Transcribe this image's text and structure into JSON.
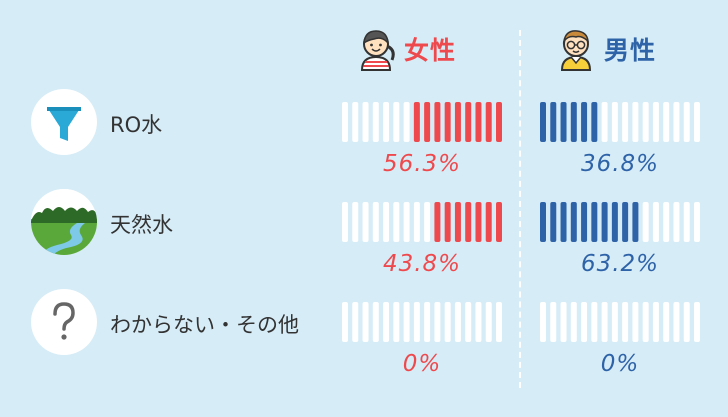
{
  "colors": {
    "female": "#ee4a4e",
    "male": "#2f63a8",
    "empty": "#ffffff",
    "background": "#d6ecf7"
  },
  "headers": {
    "female": {
      "label": "女性",
      "icon": "girl-avatar-icon"
    },
    "male": {
      "label": "男性",
      "icon": "boy-avatar-icon"
    }
  },
  "chart_data": {
    "type": "bar",
    "categories": [
      "RO水",
      "天然水",
      "わからない・その他"
    ],
    "category_icons": [
      "filter-funnel-icon",
      "forest-river-icon",
      "question-mark-icon"
    ],
    "segments_per_bar": 16,
    "fill_from": "female-right, male-left",
    "series": [
      {
        "name": "女性",
        "values": [
          56.3,
          43.8,
          0
        ],
        "labels": [
          "56.3%",
          "43.8%",
          "0%"
        ]
      },
      {
        "name": "男性",
        "values": [
          36.8,
          63.2,
          0
        ],
        "labels": [
          "36.8%",
          "63.2%",
          "0%"
        ]
      }
    ],
    "ylim": [
      0,
      100
    ]
  }
}
